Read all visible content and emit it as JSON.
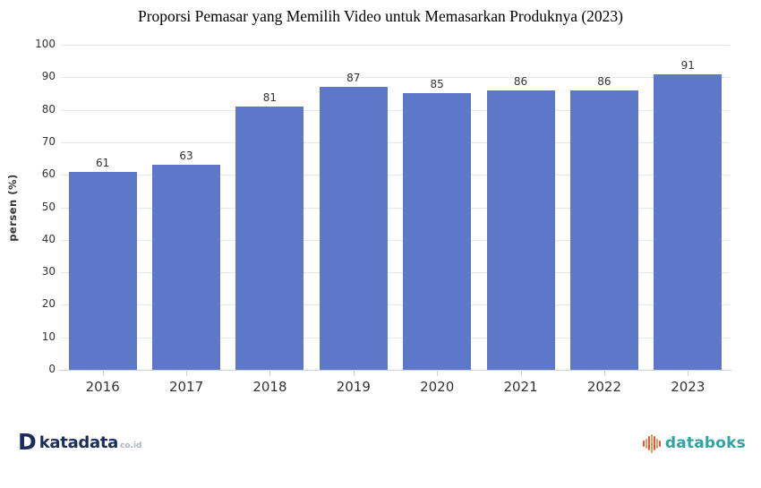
{
  "chart_data": {
    "type": "bar",
    "title": "Proporsi Pemasar yang Memilih Video untuk Memasarkan Produknya (2023)",
    "categories": [
      "2016",
      "2017",
      "2018",
      "2019",
      "2020",
      "2021",
      "2022",
      "2023"
    ],
    "values": [
      61,
      63,
      81,
      87,
      85,
      86,
      86,
      91
    ],
    "xlabel": "",
    "ylabel": "persen (%)",
    "ylim": [
      0,
      100
    ],
    "ytick_step": 10,
    "yticks": [
      0,
      10,
      20,
      30,
      40,
      50,
      60,
      70,
      80,
      90,
      100
    ],
    "grid": true,
    "legend_position": "none",
    "bar_color": "#5d78c8",
    "label_color": "#333333",
    "gridline_color": "#e6e6e6",
    "axis_line_color": "#ccd2dd"
  },
  "footer": {
    "katadata": {
      "icon": "katadata-d-logo",
      "mark": "D",
      "text": "katadata",
      "suffix": "co.id",
      "brand_color": "#1b2d5b",
      "suffix_color": "#aeb6c2"
    },
    "databoks": {
      "icon": "databoks-bars-logo",
      "text": "databoks",
      "brand_color": "#2ea3a1",
      "icon_bar_heights": [
        7,
        11,
        16,
        21,
        16,
        11,
        7
      ],
      "icon_bar_colors": [
        "#e2574c",
        "#f29b4b",
        "#e2574c",
        "#f29b4b",
        "#e2574c",
        "#f29b4b",
        "#e2574c"
      ]
    }
  }
}
